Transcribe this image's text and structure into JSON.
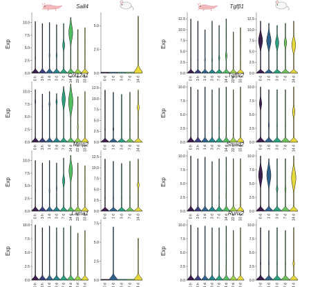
{
  "chart_data": [
    {
      "type": "violin",
      "gene": "Sall4",
      "ylabel": "Exp",
      "left": {
        "species": "axolotl",
        "yticks": [
          0.0,
          2.5,
          5.0,
          7.5,
          10.0
        ],
        "ylim": [
          0,
          12
        ],
        "categories": [
          "0 h",
          "3 h",
          "1 d",
          "3 d",
          "7 d",
          "14 d",
          "22 d",
          "33 d"
        ],
        "max": [
          10.2,
          9.8,
          10.0,
          9.6,
          9.8,
          11.0,
          8.6,
          9.0
        ],
        "bulge": [
          0.6,
          0.5,
          0.8,
          0.9,
          1.8,
          3.5,
          0.5,
          0.4
        ],
        "bulge_at": [
          3.0,
          2.5,
          3.5,
          3.5,
          5.5,
          8.0,
          2.0,
          2.0
        ]
      },
      "right": {
        "species": "mouse",
        "yticks": [
          0.0,
          2.5,
          5.0
        ],
        "ylim": [
          0,
          6.4
        ],
        "categories": [
          "0 d",
          "1 d",
          "3 d",
          "7 d",
          "14 d"
        ],
        "max": [
          0.1,
          0.1,
          0.1,
          0.1,
          6.0
        ],
        "bulge": [
          0,
          0,
          0,
          0,
          0
        ],
        "bulge_at": [
          0,
          0,
          0,
          0,
          0
        ]
      }
    },
    {
      "type": "violin",
      "gene": "Tgfβ1",
      "ylabel": "Exp",
      "left": {
        "species": "axolotl",
        "yticks": [
          0.0,
          2.5,
          5.0,
          7.5,
          10.0,
          12.5
        ],
        "ylim": [
          0,
          14
        ],
        "categories": [
          "0 h",
          "3 h",
          "1 d",
          "3 d",
          "7 d",
          "14 d",
          "22 d",
          "33 d"
        ],
        "max": [
          12.5,
          12.0,
          10.0,
          12.0,
          11.0,
          12.5,
          9.5,
          10.5
        ],
        "bulge": [
          0.6,
          0.6,
          0.8,
          0.8,
          1.2,
          1.5,
          0.6,
          0.6
        ],
        "bulge_at": [
          3.0,
          3.0,
          3.0,
          3.0,
          3.5,
          4.0,
          2.5,
          2.5
        ]
      },
      "right": {
        "species": "mouse",
        "yticks": [
          0.0,
          2.5,
          5.0,
          7.5,
          10.0,
          12.5
        ],
        "ylim": [
          0,
          14
        ],
        "categories": [
          "0 d",
          "1 d",
          "3 d",
          "7 d",
          "14 d"
        ],
        "max": [
          12.0,
          11.5,
          11.0,
          11.5,
          12.0
        ],
        "bulge": [
          3.2,
          3.4,
          2.6,
          2.0,
          3.0
        ],
        "bulge_at": [
          7.5,
          7.5,
          7.0,
          7.0,
          6.5
        ]
      }
    },
    {
      "type": "violin",
      "gene": "Col12a1",
      "ylabel": "Exp",
      "left": {
        "species": "axolotl",
        "yticks": [
          0.0,
          2.5,
          5.0,
          7.5,
          10.0
        ],
        "ylim": [
          0,
          12
        ],
        "categories": [
          "0 h",
          "3 h",
          "1 d",
          "3 d",
          "7 d",
          "14 d",
          "22 d",
          "33 d"
        ],
        "max": [
          10.4,
          9.5,
          10.0,
          9.6,
          11.0,
          11.5,
          9.0,
          10.0
        ],
        "bulge": [
          0.8,
          0.6,
          1.0,
          1.2,
          3.0,
          4.0,
          0.8,
          0.6
        ],
        "bulge_at": [
          8.0,
          7.0,
          7.5,
          8.0,
          8.5,
          8.0,
          3.0,
          3.0
        ]
      },
      "right": {
        "species": "mouse",
        "yticks": [
          0.0,
          2.5,
          5.0,
          7.5,
          10.0,
          12.5
        ],
        "ylim": [
          0,
          14
        ],
        "categories": [
          "0 d",
          "1 d",
          "3 d",
          "7 d",
          "14 d"
        ],
        "max": [
          12.0,
          11.5,
          11.0,
          11.5,
          12.0
        ],
        "bulge": [
          0.6,
          0.8,
          0.6,
          0.6,
          1.6
        ],
        "bulge_at": [
          3.0,
          3.0,
          3.0,
          3.0,
          8.0
        ]
      }
    },
    {
      "type": "violin",
      "gene": "Tgfβr2",
      "ylabel": "Exp",
      "left": {
        "species": "axolotl",
        "yticks": [
          0.0,
          2.5,
          5.0,
          7.5,
          10.0
        ],
        "ylim": [
          0,
          11
        ],
        "categories": [
          "0 h",
          "3 h",
          "1 d",
          "3 d",
          "7 d",
          "14 d",
          "22 d",
          "33 d"
        ],
        "max": [
          10.0,
          9.5,
          10.0,
          9.5,
          9.8,
          10.0,
          9.5,
          10.0
        ],
        "bulge": [
          0.5,
          0.5,
          0.5,
          0.5,
          0.6,
          0.6,
          0.5,
          0.5
        ],
        "bulge_at": [
          2.0,
          2.0,
          2.0,
          2.0,
          2.5,
          2.5,
          2.0,
          2.0
        ]
      },
      "right": {
        "species": "mouse",
        "yticks": [
          0.0,
          2.5,
          5.0,
          7.5,
          10.0
        ],
        "ylim": [
          0,
          11
        ],
        "categories": [
          "0 d",
          "1 d",
          "3 d",
          "7 d",
          "14 d"
        ],
        "max": [
          10.0,
          9.5,
          9.5,
          9.5,
          10.0
        ],
        "bulge": [
          1.8,
          0.8,
          0.6,
          0.6,
          1.8
        ],
        "bulge_at": [
          7.0,
          3.0,
          3.0,
          3.0,
          5.5
        ]
      }
    },
    {
      "type": "violin",
      "gene": "Mmp2",
      "ylabel": "Exp",
      "left": {
        "species": "axolotl",
        "yticks": [
          0.0,
          2.5,
          5.0,
          7.5,
          10.0
        ],
        "ylim": [
          0,
          12
        ],
        "categories": [
          "0 h",
          "3 h",
          "1 d",
          "3 d",
          "7 d",
          "14 d",
          "22 d",
          "33 d"
        ],
        "max": [
          10.0,
          9.5,
          10.0,
          9.5,
          10.5,
          11.0,
          9.5,
          9.0
        ],
        "bulge": [
          0.6,
          0.5,
          0.8,
          0.8,
          2.0,
          3.2,
          0.6,
          0.5
        ],
        "bulge_at": [
          4.0,
          3.0,
          4.0,
          4.5,
          6.0,
          8.0,
          3.0,
          3.0
        ]
      },
      "right": {
        "species": "mouse",
        "yticks": [
          0.0,
          2.5,
          5.0,
          7.5,
          10.0,
          12.5
        ],
        "ylim": [
          0,
          14
        ],
        "categories": [
          "0 d",
          "1 d",
          "3 d",
          "7 d",
          "14 d"
        ],
        "max": [
          12.0,
          11.5,
          11.0,
          11.5,
          12.0
        ],
        "bulge": [
          0.6,
          0.6,
          0.6,
          0.6,
          1.4
        ],
        "bulge_at": [
          3.0,
          3.0,
          3.0,
          3.0,
          6.0
        ]
      }
    },
    {
      "type": "violin",
      "gene": "Smad2",
      "ylabel": "Exp",
      "left": {
        "species": "axolotl",
        "yticks": [
          0.0,
          2.5,
          5.0,
          7.5,
          10.0
        ],
        "ylim": [
          0,
          11
        ],
        "categories": [
          "0 h",
          "3 h",
          "1 d",
          "3 d",
          "7 d",
          "14 d",
          "22 d",
          "33 d"
        ],
        "max": [
          10.0,
          9.5,
          9.8,
          9.0,
          9.5,
          9.8,
          9.5,
          9.5
        ],
        "bulge": [
          0.5,
          0.5,
          0.5,
          0.5,
          0.6,
          0.6,
          0.5,
          0.5
        ],
        "bulge_at": [
          2.0,
          2.0,
          2.0,
          2.0,
          2.5,
          2.5,
          2.0,
          2.0
        ]
      },
      "right": {
        "species": "mouse",
        "yticks": [
          0.0,
          2.5,
          5.0,
          7.5,
          10.0
        ],
        "ylim": [
          0,
          11
        ],
        "categories": [
          "0 d",
          "1 d",
          "3 d",
          "7 d",
          "14 d"
        ],
        "max": [
          10.0,
          9.5,
          9.5,
          9.5,
          10.0
        ],
        "bulge": [
          3.0,
          3.2,
          1.2,
          1.0,
          3.4
        ],
        "bulge_at": [
          6.5,
          6.5,
          4.0,
          4.0,
          6.0
        ]
      }
    },
    {
      "type": "violin",
      "gene": "Lama1",
      "ylabel": "Exp",
      "left": {
        "species": "axolotl",
        "yticks": [
          0.0,
          2.5,
          5.0,
          7.5,
          10.0
        ],
        "ylim": [
          0,
          11
        ],
        "categories": [
          "0 h",
          "3 h",
          "1 d",
          "3 d",
          "7 d",
          "14 d",
          "22 d",
          "33 d"
        ],
        "max": [
          10.0,
          9.5,
          9.8,
          9.5,
          9.5,
          9.8,
          8.5,
          9.0
        ],
        "bulge": [
          0.5,
          0.5,
          0.5,
          0.5,
          0.5,
          0.5,
          0.5,
          0.5
        ],
        "bulge_at": [
          2.0,
          2.0,
          2.0,
          2.0,
          2.0,
          2.0,
          2.0,
          2.0
        ]
      },
      "right": {
        "species": "mouse",
        "yticks": [
          0.0,
          2.5,
          5.0,
          7.5
        ],
        "ylim": [
          0,
          8
        ],
        "categories": [
          "0 d",
          "1 d",
          "3 d",
          "7 d",
          "14 d"
        ],
        "max": [
          0.1,
          7.0,
          0.1,
          0.1,
          5.5
        ],
        "bulge": [
          0,
          0,
          0,
          0,
          0
        ],
        "bulge_at": [
          0,
          0,
          0,
          0,
          0
        ]
      }
    },
    {
      "type": "violin",
      "gene": "Runx2",
      "ylabel": "Exp",
      "left": {
        "species": "axolotl",
        "yticks": [
          0.0,
          2.5,
          5.0,
          7.5,
          10.0
        ],
        "ylim": [
          0,
          11
        ],
        "categories": [
          "0 h",
          "3 h",
          "1 d",
          "3 d",
          "7 d",
          "14 d",
          "22 d",
          "33 d"
        ],
        "max": [
          10.0,
          9.5,
          9.8,
          9.5,
          9.5,
          9.8,
          9.0,
          9.5
        ],
        "bulge": [
          0.5,
          0.5,
          0.5,
          0.5,
          0.6,
          0.6,
          0.5,
          0.5
        ],
        "bulge_at": [
          2.0,
          2.0,
          2.0,
          2.0,
          2.0,
          2.0,
          2.0,
          2.0
        ]
      },
      "right": {
        "species": "mouse",
        "yticks": [
          0.0,
          2.5,
          5.0,
          7.5,
          10.0
        ],
        "ylim": [
          0,
          11
        ],
        "categories": [
          "0 d",
          "1 d",
          "3 d",
          "7 d",
          "14 d"
        ],
        "max": [
          9.5,
          9.0,
          9.5,
          9.0,
          9.5
        ],
        "bulge": [
          0.6,
          0.6,
          0.6,
          0.6,
          1.2
        ],
        "bulge_at": [
          3.0,
          3.0,
          3.0,
          3.0,
          3.0
        ]
      }
    }
  ],
  "palettes": {
    "axolotl": [
      "#3b1e4e",
      "#3a3f7c",
      "#31628c",
      "#26838e",
      "#2aa07f",
      "#53bd63",
      "#9ed14a",
      "#e6d93a"
    ],
    "mouse": [
      "#3b1e4e",
      "#31628c",
      "#2aa07f",
      "#6dc35a",
      "#e6d93a"
    ]
  },
  "icons": {
    "axolotl": "axolotl-icon",
    "mouse": "mouse-icon"
  }
}
